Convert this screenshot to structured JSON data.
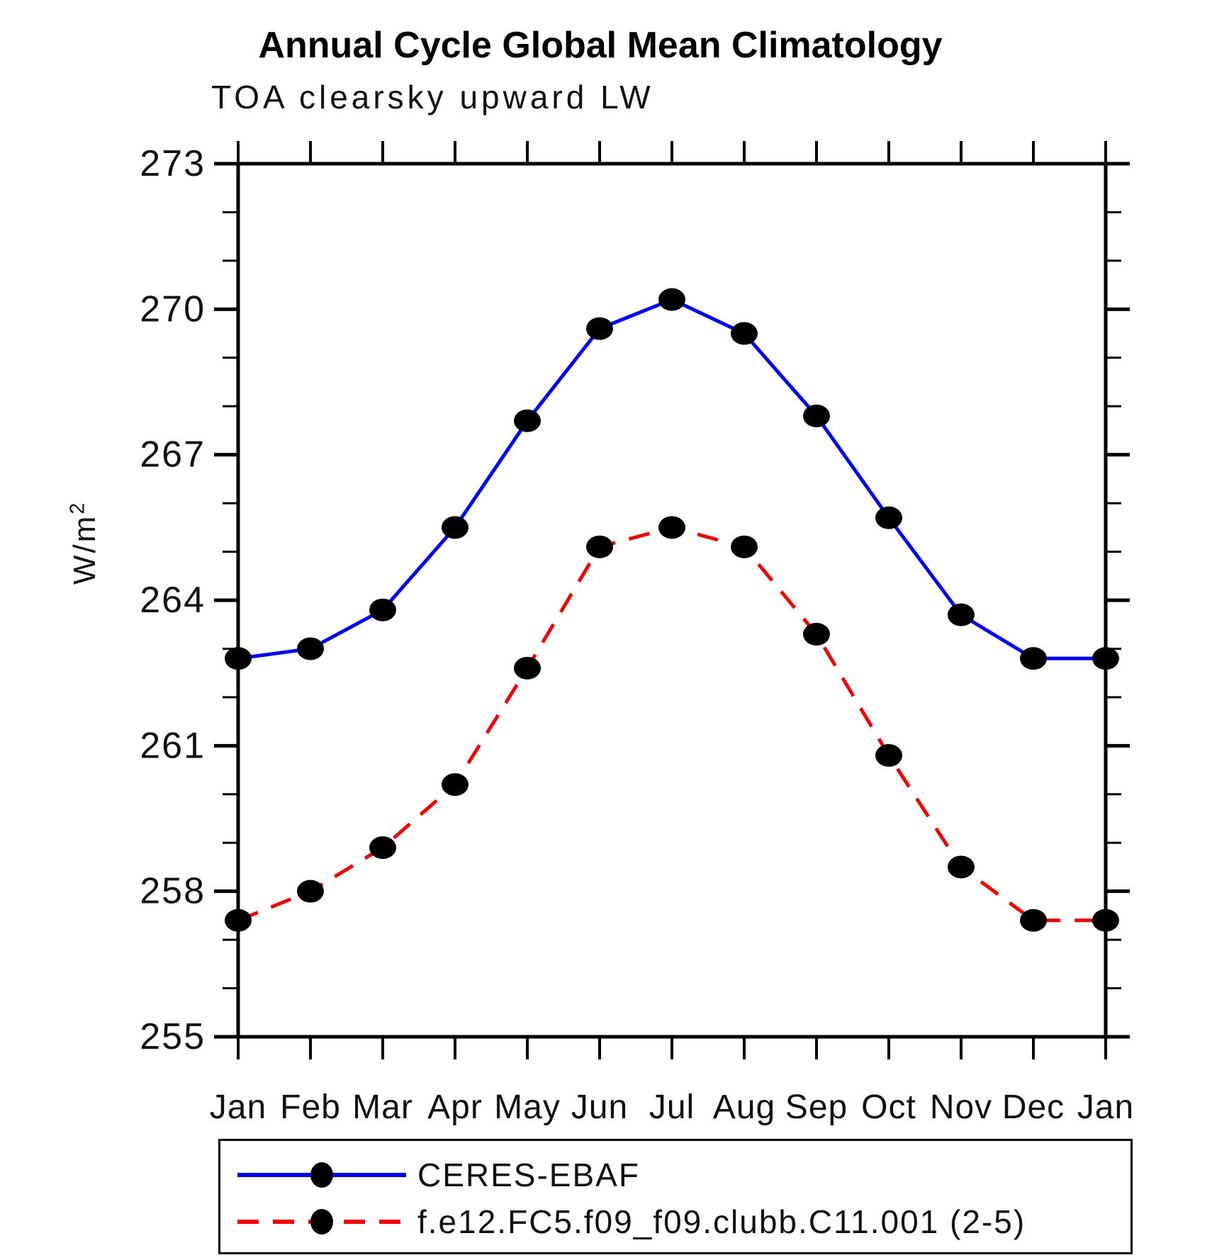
{
  "page": {
    "title": "Annual Cycle Global Mean Climatology",
    "subtitle": "TOA clearsky upward LW",
    "ylabel_base": "W/m",
    "ylabel_exp": "2"
  },
  "chart_data": {
    "type": "line",
    "title": "Annual Cycle Global Mean Climatology",
    "subtitle": "TOA clearsky upward LW",
    "ylabel": "W/m2",
    "categories": [
      "Jan",
      "Feb",
      "Mar",
      "Apr",
      "May",
      "Jun",
      "Jul",
      "Aug",
      "Sep",
      "Oct",
      "Nov",
      "Dec",
      "Jan"
    ],
    "series": [
      {
        "name": "CERES-EBAF",
        "color": "#0000EE",
        "line_style": "solid",
        "marker": "filled-circle",
        "marker_color": "#000000",
        "values": [
          262.8,
          263.0,
          263.8,
          265.5,
          267.7,
          269.6,
          270.2,
          269.5,
          267.8,
          265.7,
          263.7,
          262.8,
          262.8
        ]
      },
      {
        "name": "f.e12.FC5.f09_f09.clubb.C11.001 (2-5)",
        "color": "#EE0000",
        "line_style": "dashed",
        "marker": "filled-circle",
        "marker_color": "#000000",
        "values": [
          257.4,
          258.0,
          258.9,
          260.2,
          262.6,
          265.1,
          265.5,
          265.1,
          263.3,
          260.8,
          258.5,
          257.4,
          257.4
        ]
      }
    ],
    "ylim": [
      255,
      273
    ],
    "yticks_major": [
      255,
      258,
      261,
      264,
      267,
      270,
      273
    ],
    "ytick_minor_interval": 1,
    "grid": false,
    "legend_position": "bottom",
    "frame_ticks": "outward"
  }
}
